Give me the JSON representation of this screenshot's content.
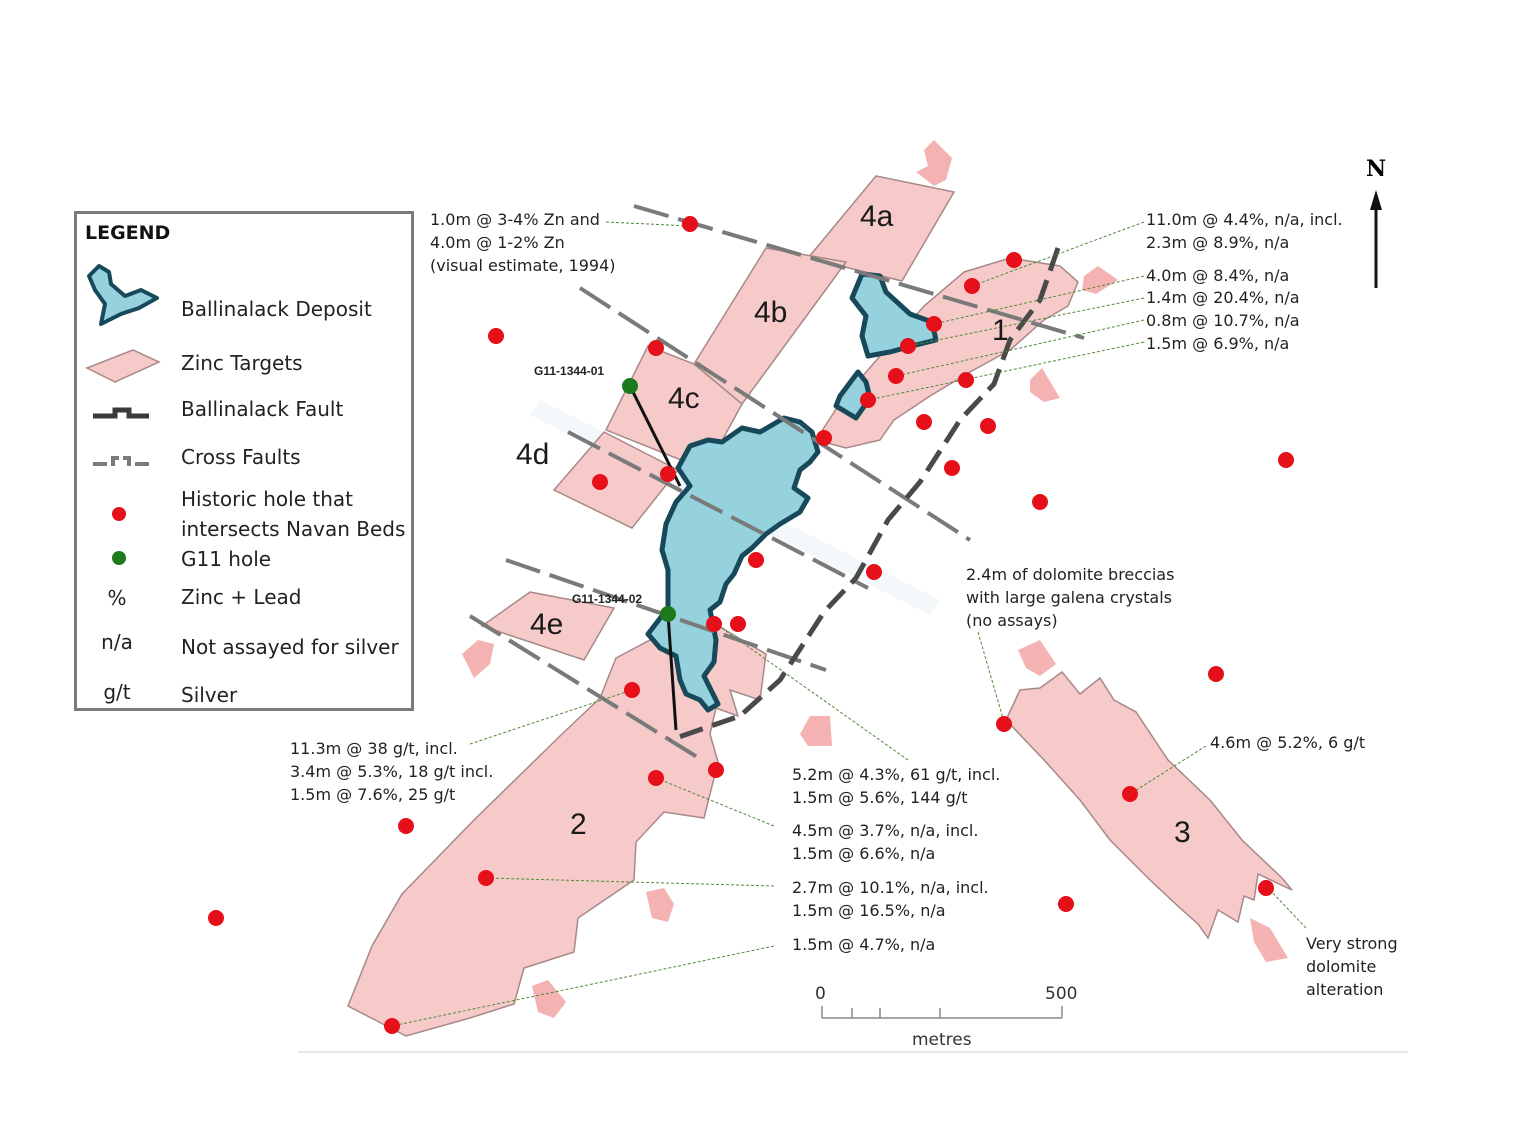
{
  "legend": {
    "title": "LEGEND",
    "items": [
      {
        "symbol": "deposit-polygon",
        "label": "Ballinalack Deposit"
      },
      {
        "symbol": "zinc-target-polygon",
        "label": "Zinc Targets"
      },
      {
        "symbol": "ballinalack-fault-line",
        "label": "Ballinalack Fault"
      },
      {
        "symbol": "cross-fault-line",
        "label": "Cross Faults"
      },
      {
        "symbol": "red-dot",
        "label": "Historic hole that\nintersects Navan Beds"
      },
      {
        "symbol": "green-dot",
        "label": "G11 hole"
      },
      {
        "symbol_text": "%",
        "label": "Zinc + Lead"
      },
      {
        "symbol_text": "n/a",
        "label": "Not assayed for silver"
      },
      {
        "symbol_text": "g/t",
        "label": "Silver"
      }
    ]
  },
  "zone_labels": {
    "z4a": "4a",
    "z4b": "4b",
    "z4c": "4c",
    "z4d": "4d",
    "z4e": "4e",
    "z1": "1",
    "z2": "2",
    "z3": "3"
  },
  "g11_holes": {
    "hole1": "G11-1344-01",
    "hole2": "G11-1344-02"
  },
  "annotations": {
    "a_topleft": "1.0m @ 3-4% Zn and\n4.0m @ 1-2% Zn\n(visual estimate, 1994)",
    "a_ne1": "11.0m @ 4.4%, n/a, incl.\n2.3m @ 8.9%, n/a",
    "a_ne2": "4.0m @ 8.4%, n/a",
    "a_ne3": "1.4m @ 20.4%, n/a",
    "a_ne4": "0.8m @ 10.7%, n/a",
    "a_ne5": "1.5m @ 6.9%, n/a",
    "a_dolomite": "2.4m of dolomite breccias\nwith large galena crystals\n(no assays)",
    "a_sw": "11.3m @ 38 g/t, incl.\n3.4m @ 5.3%, 18 g/t incl.\n1.5m @ 7.6%, 25 g/t",
    "a_c1": "5.2m @ 4.3%, 61 g/t, incl.\n1.5m @ 5.6%, 144 g/t",
    "a_c2": "4.5m @ 3.7%, n/a, incl.\n1.5m @ 6.6%, n/a",
    "a_c3": "2.7m @ 10.1%, n/a, incl.\n1.5m @ 16.5%, n/a",
    "a_c4": "1.5m @ 4.7%, n/a",
    "a_z3": "4.6m @ 5.2%, 6 g/t",
    "a_alt": "Very strong\ndolomite\nalteration"
  },
  "scale": {
    "zero": "0",
    "max": "500",
    "unit": "metres"
  },
  "north": "N",
  "colors": {
    "zinc_target_fill": "#f7caca",
    "zinc_target_stroke": "#a88888",
    "deposit_fill": "#95d2dd",
    "deposit_stroke": "#17495a",
    "historic_hole": "#e5101a",
    "g11_hole": "#1c7a1c",
    "cross_fault": "#7a7a7a",
    "ballinalack_fault": "#4a4a4a",
    "arrow": "#f4b2b2",
    "leader": "#4f8a3a"
  }
}
